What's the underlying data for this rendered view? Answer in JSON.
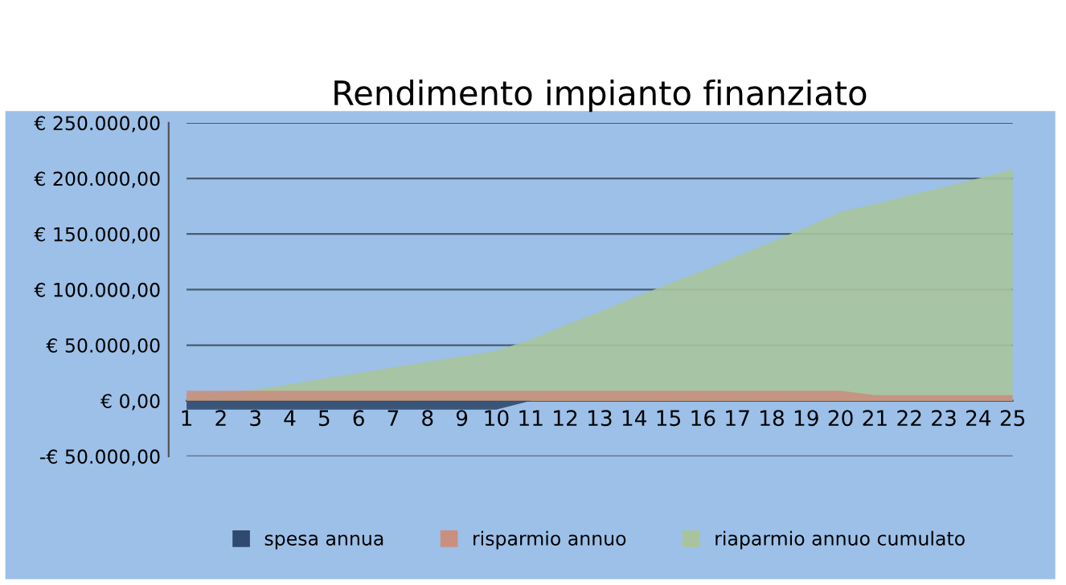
{
  "chart_data": {
    "type": "area",
    "title": "Rendimento impianto finanziato",
    "categories": [
      "1",
      "2",
      "3",
      "4",
      "5",
      "6",
      "7",
      "8",
      "9",
      "10",
      "11",
      "12",
      "13",
      "14",
      "15",
      "16",
      "17",
      "18",
      "19",
      "20",
      "21",
      "22",
      "23",
      "24",
      "25"
    ],
    "series": [
      {
        "name": "spesa annua",
        "color": "#2f4a6e",
        "values": [
          -8000,
          -8000,
          -8000,
          -8000,
          -8000,
          -8000,
          -8000,
          -8000,
          -8000,
          -8000,
          0,
          0,
          0,
          0,
          0,
          0,
          0,
          0,
          0,
          0,
          0,
          0,
          0,
          0,
          0
        ]
      },
      {
        "name": "risparmio annuo",
        "color": "#c9907f",
        "values": [
          9000,
          9000,
          9000,
          9000,
          9000,
          9000,
          9000,
          9000,
          9000,
          9000,
          9000,
          9000,
          9000,
          9000,
          9000,
          9000,
          9000,
          9000,
          9000,
          9000,
          5000,
          5000,
          5000,
          5000,
          5000
        ]
      },
      {
        "name": "riaparmio annuo cumulato",
        "color": "#a9c49c",
        "values": [
          5000,
          7000,
          10000,
          15000,
          20000,
          25000,
          30000,
          35000,
          40000,
          45000,
          55000,
          68000,
          80000,
          93000,
          105000,
          117000,
          130000,
          143000,
          156000,
          170000,
          177000,
          185000,
          192000,
          200000,
          208000
        ]
      }
    ],
    "ylim": [
      -50000,
      250000
    ],
    "yticks": [
      {
        "value": -50000,
        "label": "-€ 50.000,00"
      },
      {
        "value": 0,
        "label": "€ 0,00"
      },
      {
        "value": 50000,
        "label": "€ 50.000,00"
      },
      {
        "value": 100000,
        "label": "€ 100.000,00"
      },
      {
        "value": 150000,
        "label": "€ 150.000,00"
      },
      {
        "value": 200000,
        "label": "€ 200.000,00"
      },
      {
        "value": 250000,
        "label": "€ 250.000,00"
      }
    ],
    "grid": "y",
    "legend": "bottom"
  }
}
